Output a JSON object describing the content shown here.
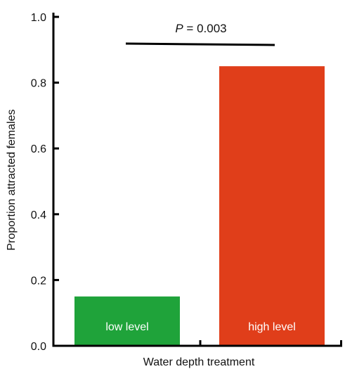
{
  "chart_data": {
    "type": "bar",
    "title": "",
    "xlabel": "Water depth treatment",
    "ylabel": "Proportion attracted females",
    "ylim": [
      0,
      1.0
    ],
    "yticks": [
      0.0,
      0.2,
      0.4,
      0.6,
      0.8,
      1.0
    ],
    "ytick_labels": [
      "0.0",
      "0.2",
      "0.4",
      "0.6",
      "0.8",
      "1.0"
    ],
    "categories": [
      "low level",
      "high level"
    ],
    "values": [
      0.15,
      0.85
    ],
    "colors": [
      "#1fa33a",
      "#e03e1a"
    ],
    "category_labels_inside_bars": true,
    "annotation": {
      "italic": "P",
      "text": " = 0.003",
      "between": [
        "low level",
        "high level"
      ]
    },
    "grid": false
  }
}
